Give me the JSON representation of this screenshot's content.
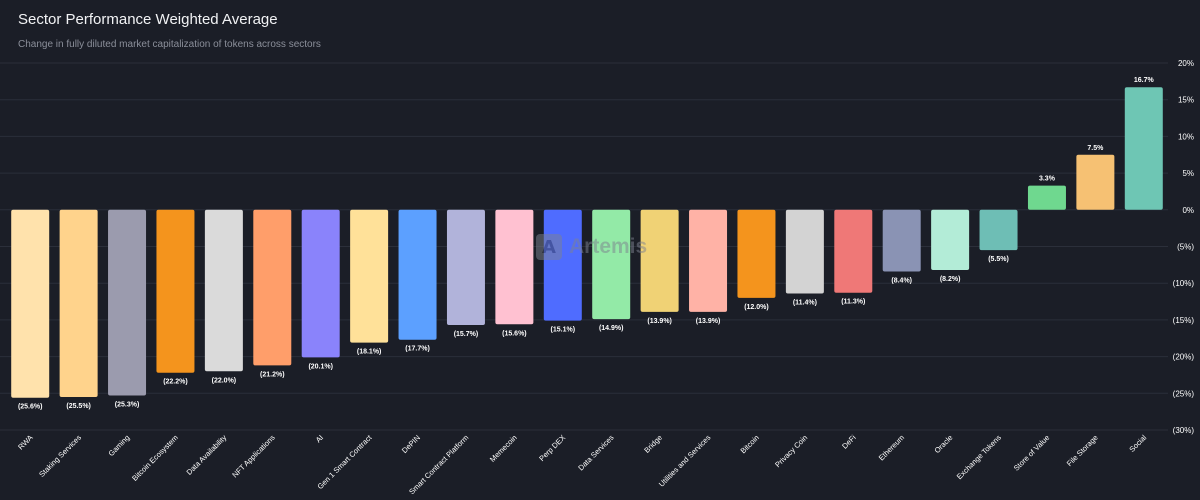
{
  "header": {
    "title": "Sector Performance Weighted Average",
    "subtitle": "Change in fully diluted market capitalization of tokens across sectors"
  },
  "watermark": {
    "text": "Artemis",
    "logo_glyph": "A"
  },
  "colors": {
    "background": "#1b1e27",
    "grid": "#2b2f3a",
    "tick_text": "#ffffff",
    "label_text": "#ffffff"
  },
  "chart_data": {
    "type": "bar",
    "title": "Sector Performance Weighted Average",
    "subtitle": "Change in fully diluted market capitalization of tokens across sectors",
    "xlabel": "",
    "ylabel": "",
    "ylim": [
      -30,
      20
    ],
    "grid": true,
    "y_axis_side": "right",
    "y_ticks": [
      20,
      15,
      10,
      5,
      0,
      -5,
      -10,
      -15,
      -20,
      -25,
      -30
    ],
    "y_tick_labels": [
      "20%",
      "15%",
      "10%",
      "5%",
      "0%",
      "(5%)",
      "(10%)",
      "(15%)",
      "(20%)",
      "(25%)",
      "(30%)"
    ],
    "categories": [
      "RWA",
      "Staking Services",
      "Gaming",
      "Bitcoin Ecosystem",
      "Data Availability",
      "NFT Applications",
      "AI",
      "Gen 1 Smart Contract",
      "DePIN",
      "Smart Contract Platform",
      "Memecoin",
      "Perp DEX",
      "Data Services",
      "Bridge",
      "Utilities and Services",
      "Bitcoin",
      "Privacy Coin",
      "DeFi",
      "Ethereum",
      "Oracle",
      "Exchange Tokens",
      "Store of Value",
      "File Storage",
      "Social"
    ],
    "values": [
      -25.6,
      -25.5,
      -25.3,
      -22.2,
      -22.0,
      -21.2,
      -20.1,
      -18.1,
      -17.7,
      -15.7,
      -15.6,
      -15.1,
      -14.9,
      -13.9,
      -13.9,
      -12.0,
      -11.4,
      -11.3,
      -8.4,
      -8.2,
      -5.5,
      3.3,
      7.5,
      16.7
    ],
    "value_labels": [
      "(25.6%)",
      "(25.5%)",
      "(25.3%)",
      "(22.2%)",
      "(22.0%)",
      "(21.2%)",
      "(20.1%)",
      "(18.1%)",
      "(17.7%)",
      "(15.7%)",
      "(15.6%)",
      "(15.1%)",
      "(14.9%)",
      "(13.9%)",
      "(13.9%)",
      "(12.0%)",
      "(11.4%)",
      "(11.3%)",
      "(8.4%)",
      "(8.2%)",
      "(5.5%)",
      "3.3%",
      "7.5%",
      "16.7%"
    ],
    "bar_colors": [
      "#ffe2ac",
      "#ffd38c",
      "#9b9bae",
      "#f4941d",
      "#dadada",
      "#ff9e6a",
      "#8a83fb",
      "#ffe199",
      "#5ca0ff",
      "#b1b3da",
      "#ffc1d1",
      "#4f6cff",
      "#93eaa7",
      "#f0d275",
      "#ffb2a6",
      "#f4941d",
      "#d3d3d3",
      "#ef7877",
      "#8a93b4",
      "#b3ecd7",
      "#6ebeb5",
      "#6fd88f",
      "#f6c173",
      "#6ec6b4"
    ]
  }
}
